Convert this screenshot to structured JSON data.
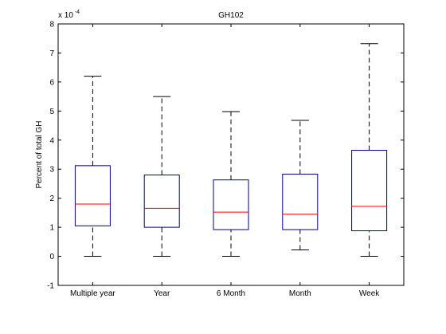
{
  "chart_data": {
    "type": "boxplot",
    "title": "GH102",
    "xlabel": "",
    "ylabel": "Percent of total GH",
    "y_multiplier_label": "x 10",
    "y_multiplier_exponent": "-4",
    "ylim": [
      -1,
      8
    ],
    "yticks": [
      -1,
      0,
      1,
      2,
      3,
      4,
      5,
      6,
      7,
      8
    ],
    "categories": [
      "Multiple year",
      "Year",
      "6 Month",
      "Month",
      "Week"
    ],
    "boxes": [
      {
        "whisker_low": 0.0,
        "q1": 1.05,
        "median": 1.8,
        "q3": 3.12,
        "whisker_high": 6.2
      },
      {
        "whisker_low": 0.0,
        "q1": 1.0,
        "median": 1.65,
        "q3": 2.8,
        "whisker_high": 5.5
      },
      {
        "whisker_low": 0.0,
        "q1": 0.92,
        "median": 1.52,
        "q3": 2.63,
        "whisker_high": 4.98
      },
      {
        "whisker_low": 0.22,
        "q1": 0.92,
        "median": 1.45,
        "q3": 2.83,
        "whisker_high": 4.68
      },
      {
        "whisker_low": 0.0,
        "q1": 0.88,
        "median": 1.72,
        "q3": 3.65,
        "whisker_high": 7.32
      }
    ],
    "colors": {
      "box": "#00008b",
      "median": "#ff0000",
      "whisker": "#000000"
    },
    "grid": false
  }
}
